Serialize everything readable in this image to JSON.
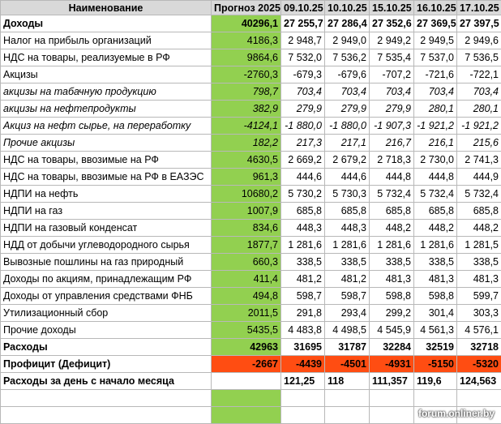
{
  "header": {
    "name": "Наименование",
    "forecast": "Прогноз 2025",
    "dates": [
      "09.10.25",
      "10.10.25",
      "15.10.25",
      "16.10.25",
      "17.10.25"
    ]
  },
  "rows": [
    {
      "name": "Доходы",
      "forecast": "40296,1",
      "values": [
        "27 255,7",
        "27 286,4",
        "27 352,6",
        "27 369,5",
        "27 397,5"
      ],
      "style": "bold"
    },
    {
      "name": "Налог на прибыль организаций",
      "forecast": "4186,3",
      "values": [
        "2 948,7",
        "2 949,0",
        "2 949,2",
        "2 949,5",
        "2 949,6"
      ]
    },
    {
      "name": "НДС на товары, реализуемые в РФ",
      "forecast": "9864,6",
      "values": [
        "7 532,0",
        "7 536,2",
        "7 535,4",
        "7 537,0",
        "7 536,5"
      ]
    },
    {
      "name": "Акцизы",
      "forecast": "-2760,3",
      "values": [
        "-679,3",
        "-679,6",
        "-707,2",
        "-721,6",
        "-722,1"
      ]
    },
    {
      "name": "акцизы на табачную продукцию",
      "forecast": "798,7",
      "values": [
        "703,4",
        "703,4",
        "703,4",
        "703,4",
        "703,4"
      ],
      "style": "italic"
    },
    {
      "name": "акцизы на нефтепродукты",
      "forecast": "382,9",
      "values": [
        "279,9",
        "279,9",
        "279,9",
        "280,1",
        "280,1"
      ],
      "style": "italic"
    },
    {
      "name": "Акциз на нефт сырье,  на переработку",
      "forecast": "-4124,1",
      "values": [
        "-1 880,0",
        "-1 880,0",
        "-1 907,3",
        "-1 921,2",
        "-1 921,2"
      ],
      "style": "italic"
    },
    {
      "name": "Прочие акцизы",
      "forecast": "182,2",
      "values": [
        "217,3",
        "217,1",
        "216,7",
        "216,1",
        "215,6"
      ],
      "style": "italic"
    },
    {
      "name": "НДС на товары, ввозимые на  РФ",
      "forecast": "4630,5",
      "values": [
        "2 669,2",
        "2 679,2",
        "2 718,3",
        "2 730,0",
        "2 741,3"
      ]
    },
    {
      "name": "НДС на товары, ввозимые на  РФ в  ЕАЗЭС",
      "forecast": "961,3",
      "values": [
        "444,6",
        "444,6",
        "444,8",
        "444,8",
        "444,9"
      ]
    },
    {
      "name": "НДПИ на нефть",
      "forecast": "10680,2",
      "values": [
        "5 730,2",
        "5 730,3",
        "5 732,4",
        "5 732,4",
        "5 732,4"
      ]
    },
    {
      "name": "НДПИ на газ",
      "forecast": "1007,9",
      "values": [
        "685,8",
        "685,8",
        "685,8",
        "685,8",
        "685,8"
      ]
    },
    {
      "name": "НДПИ на газовый конденсат",
      "forecast": "834,6",
      "values": [
        "448,3",
        "448,3",
        "448,2",
        "448,2",
        "448,2"
      ]
    },
    {
      "name": "НДД от добычи углеводородного сырья",
      "forecast": "1877,7",
      "values": [
        "1 281,6",
        "1 281,6",
        "1 281,6",
        "1 281,6",
        "1 281,5"
      ]
    },
    {
      "name": "Вывозные пошлины на газ природный",
      "forecast": "660,3",
      "values": [
        "338,5",
        "338,5",
        "338,5",
        "338,5",
        "338,5"
      ]
    },
    {
      "name": "Доходы по акциям, принадлежащим РФ",
      "forecast": "411,4",
      "values": [
        "481,2",
        "481,2",
        "481,3",
        "481,3",
        "481,3"
      ]
    },
    {
      "name": "Доходы от управления средствами ФНБ",
      "forecast": "494,8",
      "values": [
        "598,7",
        "598,7",
        "598,8",
        "598,8",
        "599,7"
      ]
    },
    {
      "name": "Утилизационный сбор",
      "forecast": "2011,5",
      "values": [
        "291,8",
        "293,4",
        "299,2",
        "301,4",
        "303,3"
      ]
    },
    {
      "name": "Прочие доходы",
      "forecast": "5435,5",
      "values": [
        "4 483,8",
        "4 498,5",
        "4 545,9",
        "4 561,3",
        "4 576,1"
      ]
    },
    {
      "name": "Расходы",
      "forecast": "42963",
      "values": [
        "31695",
        "31787",
        "32284",
        "32519",
        "32718"
      ],
      "style": "bold"
    },
    {
      "name": "Профицит (Дефицит)",
      "forecast": "-2667",
      "values": [
        "-4439",
        "-4501",
        "-4931",
        "-5150",
        "-5320"
      ],
      "style": "bold-red"
    },
    {
      "name": "Расходы за день с начало месяца",
      "values": [
        "121,25",
        "118",
        "111,357",
        "119,6",
        "124,563"
      ],
      "style": "bold-left"
    }
  ],
  "watermark": "forum.onliner.by"
}
